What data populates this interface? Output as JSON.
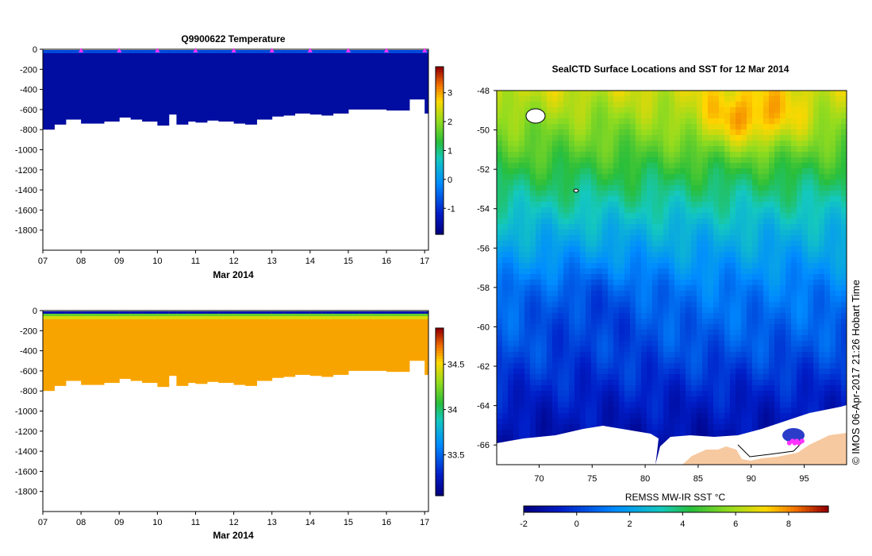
{
  "chart_data": [
    {
      "type": "heatmap",
      "name": "temperature-section",
      "title": "Q9900622  Temperature",
      "xlabel": "Mar 2014",
      "x_ticks": [
        "07",
        "08",
        "09",
        "10",
        "11",
        "12",
        "13",
        "14",
        "15",
        "16",
        "17"
      ],
      "y_ticks": [
        "0",
        "-200",
        "-400",
        "-600",
        "-800",
        "-1000",
        "-1200",
        "-1400",
        "-1600",
        "-1800"
      ],
      "ylim": [
        -2000,
        0
      ],
      "colorbar_ticks": [
        "3",
        "2",
        "1",
        "0",
        "-1"
      ],
      "colorbar_range": [
        -1.9,
        3.9
      ],
      "fill_value": -1.6,
      "profile_days": [
        7.0,
        7.3,
        7.6,
        8.0,
        8.3,
        8.6,
        9.0,
        9.3,
        9.6,
        10.0,
        10.3,
        10.5,
        10.8,
        11.0,
        11.3,
        11.6,
        12.0,
        12.3,
        12.6,
        13.0,
        13.3,
        13.6,
        14.0,
        14.3,
        14.6,
        15.0,
        15.3,
        15.6,
        16.0,
        16.3,
        16.6,
        16.9,
        17.0
      ],
      "profile_max_depth": [
        -800,
        -750,
        -700,
        -740,
        -740,
        -720,
        -680,
        -700,
        -720,
        -760,
        -650,
        -750,
        -720,
        -730,
        -710,
        -720,
        -740,
        -750,
        -700,
        -670,
        -660,
        -640,
        -650,
        -660,
        -640,
        -600,
        -600,
        -600,
        -610,
        -610,
        -500,
        -500,
        -640
      ],
      "surface_markers": [
        8,
        9,
        10,
        11,
        12,
        13,
        14,
        15,
        16,
        17
      ]
    },
    {
      "type": "heatmap",
      "name": "salinity-section",
      "title": "",
      "xlabel": "Mar 2014",
      "x_ticks": [
        "07",
        "08",
        "09",
        "10",
        "11",
        "12",
        "13",
        "14",
        "15",
        "16",
        "17"
      ],
      "y_ticks": [
        "0",
        "-200",
        "-400",
        "-600",
        "-800",
        "-1000",
        "-1200",
        "-1400",
        "-1600",
        "-1800"
      ],
      "ylim": [
        -2000,
        0
      ],
      "colorbar_ticks": [
        "34.5",
        "34",
        "33.5"
      ],
      "colorbar_range": [
        33.05,
        34.9
      ],
      "fill_value": 34.62,
      "profile_days": [
        7.0,
        7.3,
        7.6,
        8.0,
        8.3,
        8.6,
        9.0,
        9.3,
        9.6,
        10.0,
        10.3,
        10.5,
        10.8,
        11.0,
        11.3,
        11.6,
        12.0,
        12.3,
        12.6,
        13.0,
        13.3,
        13.6,
        14.0,
        14.3,
        14.6,
        15.0,
        15.3,
        15.6,
        16.0,
        16.3,
        16.6,
        16.9,
        17.0
      ],
      "profile_max_depth": [
        -800,
        -750,
        -700,
        -740,
        -740,
        -720,
        -680,
        -700,
        -720,
        -760,
        -650,
        -750,
        -720,
        -730,
        -710,
        -720,
        -740,
        -750,
        -700,
        -670,
        -660,
        -640,
        -650,
        -660,
        -640,
        -600,
        -600,
        -600,
        -610,
        -610,
        -500,
        -500,
        -640
      ]
    },
    {
      "type": "heatmap",
      "name": "sst-map",
      "title": "SealCTD Surface Locations and SST for 12 Mar 2014",
      "colorbar_label": "REMSS MW-IR SST °C",
      "lon_range": [
        66,
        99
      ],
      "lat_range": [
        -67,
        -48
      ],
      "lon_ticks": [
        "70",
        "75",
        "80",
        "85",
        "90",
        "95"
      ],
      "lat_ticks": [
        "-48",
        "-50",
        "-52",
        "-54",
        "-56",
        "-58",
        "-60",
        "-62",
        "-64",
        "-66"
      ],
      "colorbar_ticks": [
        "-2",
        "0",
        "2",
        "4",
        "6",
        "8"
      ],
      "colorbar_range": [
        -2,
        9.5
      ],
      "sst_anchors": [
        [
          -48,
          6.5
        ],
        [
          -51,
          5.0
        ],
        [
          -53,
          3.8
        ],
        [
          -55,
          2.6
        ],
        [
          -58,
          1.2
        ],
        [
          -61,
          0.4
        ],
        [
          -63.5,
          -0.6
        ],
        [
          -66,
          -1.3
        ]
      ],
      "tag_track": [
        [
          93.6,
          -65.9
        ],
        [
          93.9,
          -65.8
        ],
        [
          94.1,
          -65.9
        ],
        [
          94.3,
          -65.8
        ],
        [
          94.5,
          -65.9
        ],
        [
          94.8,
          -65.8
        ]
      ]
    }
  ],
  "credit": "© IMOS 06-Apr-2017 21:26 Hobart Time",
  "colors": {
    "marker": "#ff33ff",
    "land": "#f7c9a0"
  }
}
